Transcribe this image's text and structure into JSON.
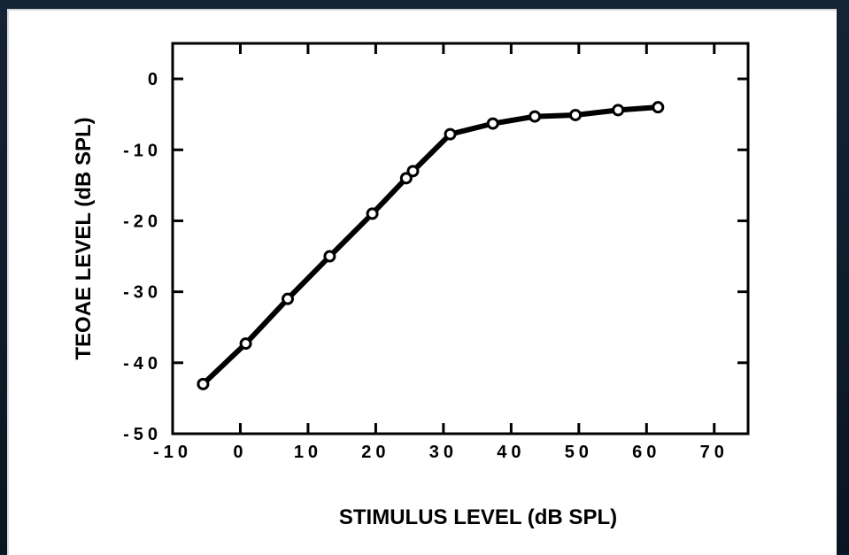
{
  "chart_data": {
    "type": "line",
    "title": "",
    "xlabel": "STIMULUS LEVEL (dB SPL)",
    "ylabel": "TEOAE LEVEL (dB SPL)",
    "xlim": [
      -10,
      75
    ],
    "ylim": [
      -50,
      5
    ],
    "x_ticks": [
      -10,
      0,
      10,
      20,
      30,
      40,
      50,
      60,
      70
    ],
    "x_tick_labels": [
      "-10",
      "0",
      "10",
      "20",
      "30",
      "40",
      "50",
      "60",
      "70"
    ],
    "y_ticks": [
      0,
      -10,
      -20,
      -30,
      -40,
      -50
    ],
    "y_tick_labels": [
      "0",
      "-10",
      "-20",
      "-30",
      "-40",
      "-50"
    ],
    "grid": false,
    "series": [
      {
        "marker": "open-circle",
        "color": "#000000",
        "x": [
          -5.5,
          0.8,
          7,
          13.2,
          19.5,
          24.5,
          25.5,
          31,
          37.3,
          43.5,
          49.5,
          55.8,
          61.7
        ],
        "y": [
          -43,
          -37.3,
          -31,
          -25,
          -19,
          -14,
          -13,
          -7.8,
          -6.3,
          -5.3,
          -5.1,
          -4.4,
          -4
        ]
      }
    ]
  }
}
